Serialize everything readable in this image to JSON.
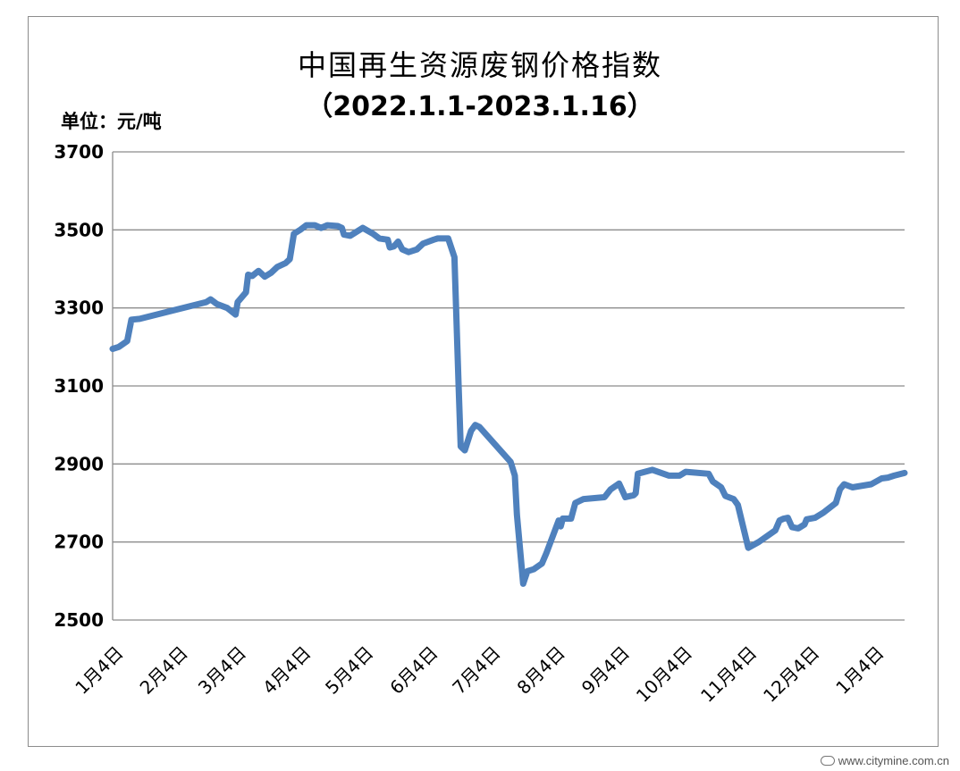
{
  "chart_data": {
    "type": "line",
    "title": "中国再生资源废钢价格指数",
    "subtitle": "（2022.1.1-2023.1.16）",
    "ylabel": "单位：元/吨",
    "xlabel": "",
    "ylim": [
      2500,
      3700
    ],
    "yticks": [
      2500,
      2700,
      2900,
      3100,
      3300,
      3500,
      3700
    ],
    "x_tick_labels": [
      "1月4日",
      "2月4日",
      "3月4日",
      "4月4日",
      "5月4日",
      "6月4日",
      "7月4日",
      "8月4日",
      "9月4日",
      "10月4日",
      "11月4日",
      "12月4日",
      "1月4日"
    ],
    "x_tick_dates": [
      "2022-01-04",
      "2022-02-04",
      "2022-03-04",
      "2022-04-04",
      "2022-05-04",
      "2022-06-04",
      "2022-07-04",
      "2022-08-04",
      "2022-09-04",
      "2022-10-04",
      "2022-11-04",
      "2022-12-04",
      "2023-01-04"
    ],
    "grid": "horizontal",
    "legend": "none",
    "line_color": "#4f81bd",
    "x_start": "2022-01-01",
    "x_end": "2023-01-16",
    "series": [
      {
        "points": [
          [
            "2022-01-01",
            3195
          ],
          [
            "2022-01-04",
            3200
          ],
          [
            "2022-01-08",
            3215
          ],
          [
            "2022-01-10",
            3270
          ],
          [
            "2022-01-14",
            3272
          ],
          [
            "2022-02-15",
            3315
          ],
          [
            "2022-02-17",
            3322
          ],
          [
            "2022-02-20",
            3310
          ],
          [
            "2022-02-25",
            3300
          ],
          [
            "2022-03-01",
            3283
          ],
          [
            "2022-03-02",
            3315
          ],
          [
            "2022-03-06",
            3340
          ],
          [
            "2022-03-07",
            3385
          ],
          [
            "2022-03-09",
            3382
          ],
          [
            "2022-03-12",
            3395
          ],
          [
            "2022-03-15",
            3380
          ],
          [
            "2022-03-18",
            3390
          ],
          [
            "2022-03-21",
            3405
          ],
          [
            "2022-03-25",
            3415
          ],
          [
            "2022-03-27",
            3425
          ],
          [
            "2022-03-29",
            3490
          ],
          [
            "2022-04-01",
            3500
          ],
          [
            "2022-04-04",
            3512
          ],
          [
            "2022-04-08",
            3512
          ],
          [
            "2022-04-11",
            3505
          ],
          [
            "2022-04-14",
            3512
          ],
          [
            "2022-04-19",
            3510
          ],
          [
            "2022-04-21",
            3505
          ],
          [
            "2022-04-22",
            3488
          ],
          [
            "2022-04-25",
            3485
          ],
          [
            "2022-05-01",
            3505
          ],
          [
            "2022-05-06",
            3490
          ],
          [
            "2022-05-09",
            3478
          ],
          [
            "2022-05-13",
            3475
          ],
          [
            "2022-05-14",
            3455
          ],
          [
            "2022-05-16",
            3458
          ],
          [
            "2022-05-18",
            3470
          ],
          [
            "2022-05-20",
            3450
          ],
          [
            "2022-05-23",
            3443
          ],
          [
            "2022-05-27",
            3450
          ],
          [
            "2022-05-30",
            3465
          ],
          [
            "2022-06-04",
            3475
          ],
          [
            "2022-06-06",
            3478
          ],
          [
            "2022-06-11",
            3478
          ],
          [
            "2022-06-14",
            3430
          ],
          [
            "2022-06-16",
            3105
          ],
          [
            "2022-06-17",
            2945
          ],
          [
            "2022-06-19",
            2935
          ],
          [
            "2022-06-22",
            2985
          ],
          [
            "2022-06-24",
            3000
          ],
          [
            "2022-06-26",
            2995
          ],
          [
            "2022-07-11",
            2905
          ],
          [
            "2022-07-13",
            2870
          ],
          [
            "2022-07-14",
            2770
          ],
          [
            "2022-07-17",
            2593
          ],
          [
            "2022-07-19",
            2625
          ],
          [
            "2022-07-22",
            2630
          ],
          [
            "2022-07-26",
            2645
          ],
          [
            "2022-07-28",
            2670
          ],
          [
            "2022-08-03",
            2755
          ],
          [
            "2022-08-04",
            2740
          ],
          [
            "2022-08-05",
            2760
          ],
          [
            "2022-08-09",
            2760
          ],
          [
            "2022-08-11",
            2800
          ],
          [
            "2022-08-15",
            2810
          ],
          [
            "2022-08-25",
            2815
          ],
          [
            "2022-08-28",
            2835
          ],
          [
            "2022-09-01",
            2850
          ],
          [
            "2022-09-04",
            2815
          ],
          [
            "2022-09-08",
            2820
          ],
          [
            "2022-09-09",
            2825
          ],
          [
            "2022-09-10",
            2875
          ],
          [
            "2022-09-17",
            2885
          ],
          [
            "2022-09-25",
            2870
          ],
          [
            "2022-09-30",
            2870
          ],
          [
            "2022-10-03",
            2880
          ],
          [
            "2022-10-14",
            2875
          ],
          [
            "2022-10-16",
            2855
          ],
          [
            "2022-10-20",
            2840
          ],
          [
            "2022-10-22",
            2818
          ],
          [
            "2022-10-26",
            2810
          ],
          [
            "2022-10-28",
            2795
          ],
          [
            "2022-11-02",
            2685
          ],
          [
            "2022-11-07",
            2700
          ],
          [
            "2022-11-15",
            2730
          ],
          [
            "2022-11-17",
            2755
          ],
          [
            "2022-11-19",
            2760
          ],
          [
            "2022-11-21",
            2762
          ],
          [
            "2022-11-23",
            2738
          ],
          [
            "2022-11-26",
            2735
          ],
          [
            "2022-11-29",
            2745
          ],
          [
            "2022-11-30",
            2758
          ],
          [
            "2022-12-04",
            2762
          ],
          [
            "2022-12-08",
            2775
          ],
          [
            "2022-12-14",
            2800
          ],
          [
            "2022-12-16",
            2835
          ],
          [
            "2022-12-18",
            2848
          ],
          [
            "2022-12-22",
            2840
          ],
          [
            "2022-12-31",
            2848
          ],
          [
            "2023-01-05",
            2863
          ],
          [
            "2023-01-08",
            2865
          ],
          [
            "2023-01-11",
            2870
          ],
          [
            "2023-01-16",
            2877
          ]
        ]
      }
    ]
  },
  "watermark": "www.citymine.com.cn"
}
